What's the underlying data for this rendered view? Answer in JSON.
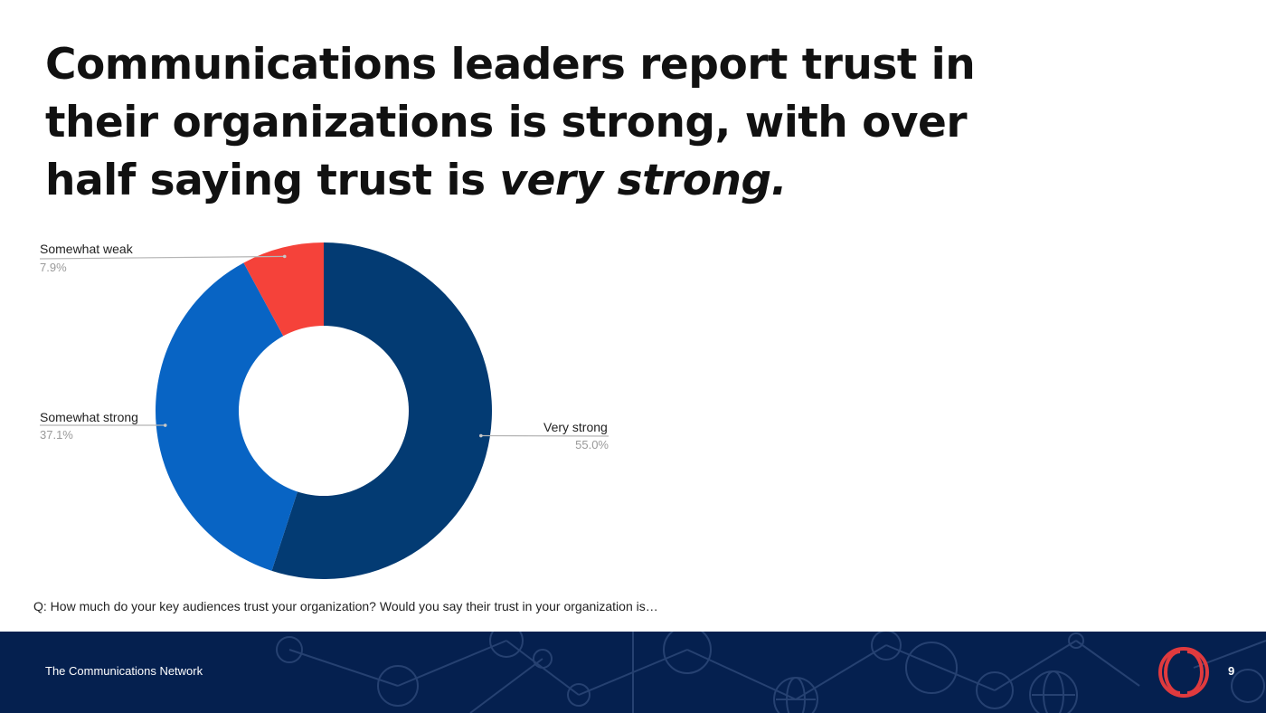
{
  "slide": {
    "title_part1": "Communications leaders report trust in their organizations is strong, with over half saying trust is ",
    "title_emphasis": "very strong.",
    "question": "Q: How much do your key audiences trust your organization? Would you say their trust in your organization is…"
  },
  "footer": {
    "organization": "The Communications Network",
    "page_number": "9"
  },
  "colors": {
    "very_strong": "#033b73",
    "somewhat_strong": "#0864c4",
    "somewhat_weak": "#f5423a",
    "footer_bg": "#05204f",
    "logo": "#e03a3e"
  },
  "icons": [
    "network-logo-icon"
  ],
  "chart_data": {
    "type": "pie",
    "variant": "donut",
    "categories": [
      "Very strong",
      "Somewhat strong",
      "Somewhat weak"
    ],
    "values": [
      55.0,
      37.1,
      7.9
    ],
    "value_labels": [
      "55.0%",
      "37.1%",
      "7.9%"
    ],
    "colors": [
      "#033b73",
      "#0864c4",
      "#f5423a"
    ],
    "start_angle_deg": 0,
    "direction": "clockwise",
    "labels": "outside-with-leader-lines"
  }
}
